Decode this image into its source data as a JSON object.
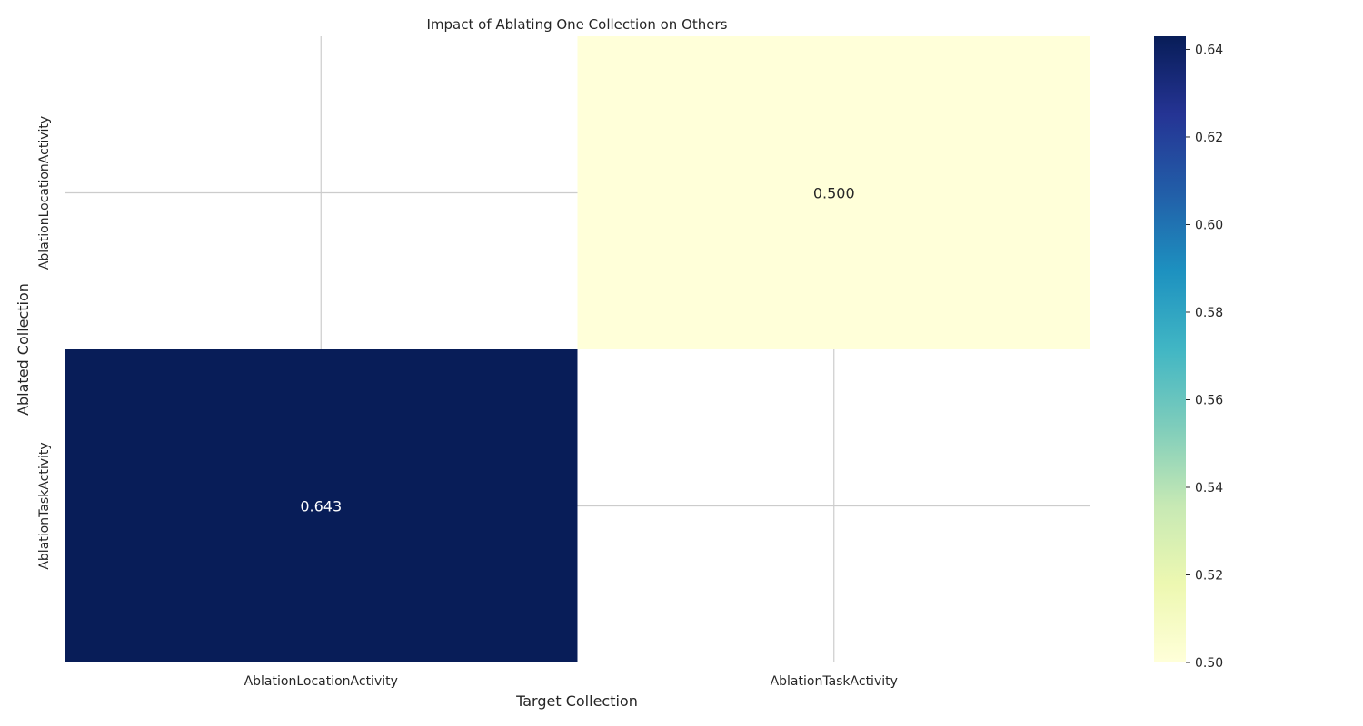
{
  "chart_data": {
    "type": "heatmap",
    "title": "Impact of Ablating One Collection on Others",
    "xlabel": "Target Collection",
    "ylabel": "Ablated Collection",
    "x_categories": [
      "AblationLocationActivity",
      "AblationTaskActivity"
    ],
    "y_categories": [
      "AblationLocationActivity",
      "AblationTaskActivity"
    ],
    "values": [
      [
        null,
        0.5
      ],
      [
        0.643,
        null
      ]
    ],
    "cell_labels": [
      [
        null,
        "0.500"
      ],
      [
        "0.643",
        null
      ]
    ],
    "colormap": "YlGnBu",
    "color_range": [
      0.5,
      0.643
    ],
    "colorbar_ticks": [
      0.5,
      0.52,
      0.54,
      0.56,
      0.58,
      0.6,
      0.62,
      0.64
    ],
    "colorbar_tick_labels": [
      "0.50",
      "0.52",
      "0.54",
      "0.56",
      "0.58",
      "0.60",
      "0.62",
      "0.64"
    ],
    "grid": true,
    "colors": {
      "low": "#ffffd9",
      "high": "#081d58",
      "grid": "#cccccc"
    }
  }
}
